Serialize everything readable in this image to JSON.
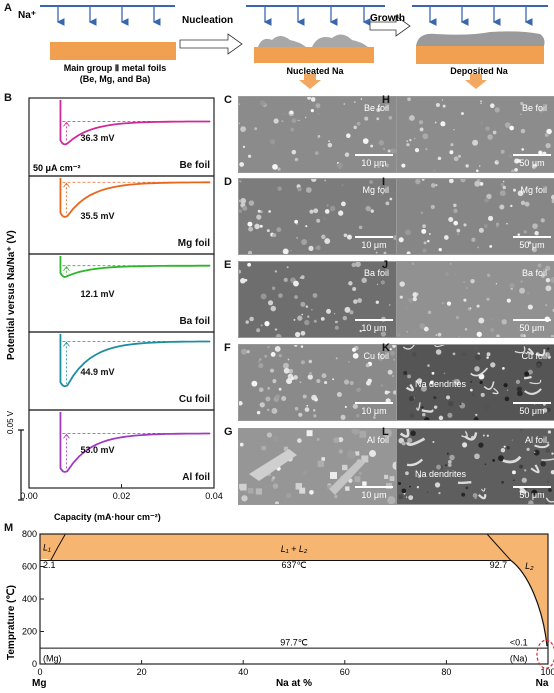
{
  "panelA": {
    "label": "A",
    "ion": "Na⁺",
    "step1": "Nucleation",
    "step2": "Growth",
    "foil_caption_1": "Main group Ⅱ metal foils",
    "foil_caption_2": "(Be, Mg, and Ba)",
    "nucleated_label": "Nucleated Na",
    "deposited_label": "Deposited Na",
    "colors": {
      "foil": "#F0A050",
      "arrow": "#3A66B0",
      "na": "#A8A8A8",
      "deposit": "#9A9A9A"
    }
  },
  "panelB": {
    "label": "B",
    "ylabel": "Potential versus Na/Na⁺ (V)",
    "xlabel": "Capacity (mA·hour cm⁻²)",
    "xticks": [
      "0.00",
      "0.02",
      "0.04"
    ],
    "current_density": "50 μA cm⁻²",
    "scale_bar": "0.05 V",
    "curves": [
      {
        "foil": "Be foil",
        "overpotential": "36.3 mV",
        "color": "#D0289A"
      },
      {
        "foil": "Mg foil",
        "overpotential": "35.5 mV",
        "color": "#E8661E"
      },
      {
        "foil": "Ba foil",
        "overpotential": "12.1 mV",
        "color": "#2FB52B"
      },
      {
        "foil": "Cu foil",
        "overpotential": "44.9 mV",
        "color": "#1E8FA0"
      },
      {
        "foil": "Al foil",
        "overpotential": "53.0 mV",
        "color": "#A33BC0"
      }
    ]
  },
  "panelsC_L": {
    "left": [
      {
        "letter": "C",
        "tag": "Be foil",
        "scale": "10 μm"
      },
      {
        "letter": "D",
        "tag": "Mg foil",
        "scale": "10 μm"
      },
      {
        "letter": "E",
        "tag": "Ba foil",
        "scale": "10 μm"
      },
      {
        "letter": "F",
        "tag": "Cu foil",
        "scale": "10 μm"
      },
      {
        "letter": "G",
        "tag": "Al foil",
        "scale": "10 μm"
      }
    ],
    "right": [
      {
        "letter": "H",
        "tag": "Be foil",
        "scale": "50 μm"
      },
      {
        "letter": "I",
        "tag": "Mg foil",
        "scale": "50 μm"
      },
      {
        "letter": "J",
        "tag": "Ba foil",
        "scale": "50 μm"
      },
      {
        "letter": "K",
        "tag": "Cu foil",
        "scale": "50 μm",
        "note": "Na dendrites"
      },
      {
        "letter": "L",
        "tag": "Al foil",
        "scale": "50 μm",
        "note": "Na dendrites"
      }
    ]
  },
  "panelM": {
    "label": "M",
    "ylabel": "Temprature (℃)",
    "xlabel": "Na at %",
    "yticks": [
      "0",
      "200",
      "400",
      "600",
      "800"
    ],
    "xticks": [
      "0",
      "20",
      "40",
      "60",
      "80",
      "100"
    ],
    "left_element": "Mg",
    "right_element": "Na",
    "region_L1": "L₁",
    "region_L1L2": "L₁ + L₂",
    "region_L2": "L₂",
    "val_left": "2.1",
    "monotectic_temp": "637℃",
    "val_right": "92.7",
    "eutectic_temp": "97.7℃",
    "eutectic_comp": "<0.1",
    "phase_Mg": "(Mg)",
    "phase_Na": "(Na)",
    "fill_color": "#F7B572"
  }
}
